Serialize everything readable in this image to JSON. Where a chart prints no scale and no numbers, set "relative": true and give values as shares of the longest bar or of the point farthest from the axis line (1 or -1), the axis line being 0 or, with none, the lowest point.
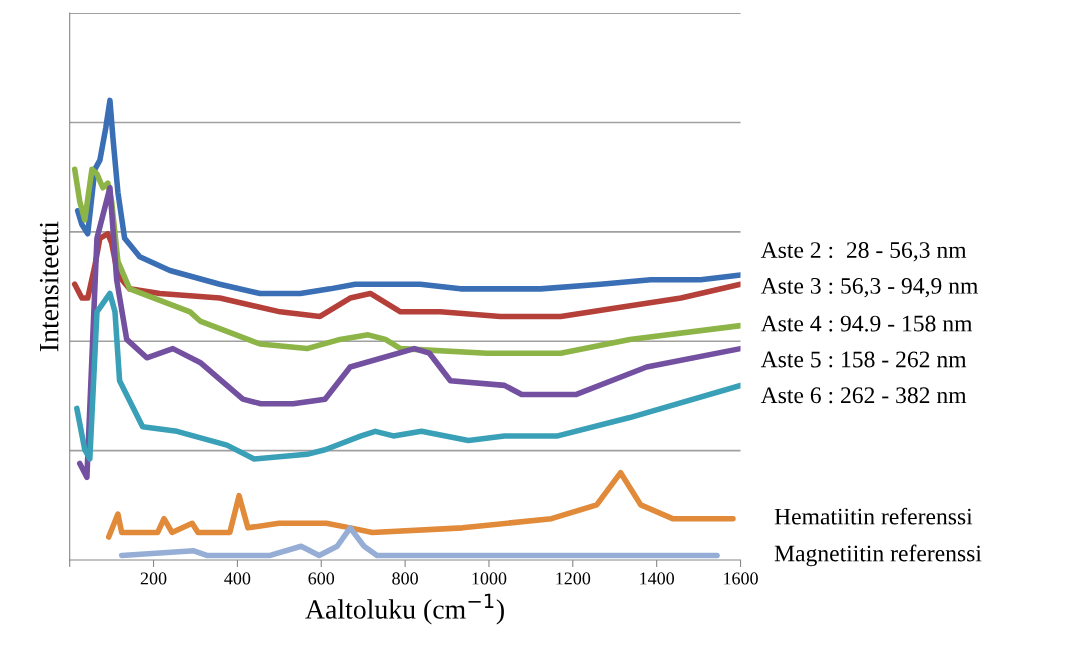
{
  "chart_data": {
    "type": "line",
    "relative": true,
    "xlabel": "Aaltoluku (cm$^{−1}$)",
    "ylabel": "Intensiteetti",
    "xlim": [
      0,
      1600
    ],
    "xticks": [
      {
        "value": 0,
        "label": null
      },
      200,
      400,
      600,
      800,
      1000,
      1200,
      1400,
      1600
    ],
    "grid": "y",
    "legend": false,
    "marker": "none",
    "line_style": "solid",
    "series": [
      {
        "name": "Aste 2 :  28 - 56,3 nm",
        "color": "#3a6fb5",
        "x": [
          19,
          29,
          43,
          60,
          72,
          86,
          96,
          103,
          115,
          131,
          167,
          239,
          358,
          454,
          550,
          621,
          681,
          741,
          836,
          932,
          1027,
          1123,
          1266,
          1386,
          1505,
          1600
        ],
        "values": [
          0.76,
          0.73,
          0.71,
          0.85,
          0.87,
          0.94,
          1,
          0.92,
          0.8,
          0.7,
          0.66,
          0.63,
          0.6,
          0.58,
          0.58,
          0.59,
          0.6,
          0.6,
          0.6,
          0.59,
          0.59,
          0.59,
          0.6,
          0.61,
          0.61,
          0.62
        ]
      },
      {
        "name": "Aste 3 : 56,3 - 94,9 nm",
        "color": "#b5403a",
        "x": [
          12,
          29,
          43,
          60,
          72,
          91,
          100,
          115,
          143,
          215,
          358,
          502,
          597,
          669,
          717,
          753,
          789,
          884,
          1027,
          1171,
          1314,
          1458,
          1600
        ],
        "values": [
          0.6,
          0.57,
          0.57,
          0.64,
          0.7,
          0.71,
          0.69,
          0.62,
          0.59,
          0.58,
          0.57,
          0.54,
          0.53,
          0.57,
          0.58,
          0.56,
          0.54,
          0.54,
          0.53,
          0.53,
          0.55,
          0.57,
          0.6
        ]
      },
      {
        "name": "Aste 4 : 94.9 - 158 nm",
        "color": "#8db446",
        "x": [
          12,
          24,
          36,
          53,
          65,
          79,
          91,
          100,
          115,
          143,
          287,
          311,
          454,
          566,
          645,
          712,
          753,
          789,
          995,
          1171,
          1336,
          1600
        ],
        "values": [
          0.85,
          0.78,
          0.74,
          0.85,
          0.84,
          0.81,
          0.82,
          0.78,
          0.65,
          0.59,
          0.54,
          0.52,
          0.47,
          0.46,
          0.48,
          0.49,
          0.48,
          0.46,
          0.45,
          0.45,
          0.48,
          0.51
        ]
      },
      {
        "name": "Aste 5 : 158 - 262 nm",
        "color": "#7350a0",
        "x": [
          24,
          41,
          65,
          96,
          112,
          136,
          184,
          246,
          311,
          413,
          456,
          533,
          609,
          669,
          822,
          858,
          908,
          1037,
          1078,
          1207,
          1376,
          1600
        ],
        "values": [
          0.21,
          0.18,
          0.7,
          0.81,
          0.61,
          0.48,
          0.44,
          0.46,
          0.43,
          0.35,
          0.34,
          0.34,
          0.35,
          0.42,
          0.46,
          0.45,
          0.39,
          0.38,
          0.36,
          0.36,
          0.42,
          0.46
        ]
      },
      {
        "name": "Aste 6 : 262 - 382 nm",
        "color": "#3aa0b8",
        "x": [
          17,
          36,
          48,
          65,
          96,
          108,
          119,
          174,
          256,
          375,
          440,
          566,
          609,
          695,
          729,
          772,
          839,
          951,
          1037,
          1164,
          1336,
          1600
        ],
        "values": [
          0.33,
          0.24,
          0.22,
          0.54,
          0.58,
          0.54,
          0.39,
          0.29,
          0.28,
          0.25,
          0.22,
          0.23,
          0.24,
          0.27,
          0.28,
          0.27,
          0.28,
          0.26,
          0.27,
          0.27,
          0.31,
          0.38
        ]
      },
      {
        "name": "Hematiitin referenssi",
        "color": "#e08a3a",
        "x": [
          93,
          115,
          124,
          210,
          225,
          244,
          292,
          306,
          382,
          404,
          425,
          499,
          564,
          612,
          669,
          722,
          937,
          1149,
          1257,
          1314,
          1362,
          1438,
          1582
        ],
        "values": [
          0.05,
          0.1,
          0.06,
          0.06,
          0.09,
          0.06,
          0.08,
          0.06,
          0.06,
          0.14,
          0.07,
          0.08,
          0.08,
          0.08,
          0.07,
          0.06,
          0.07,
          0.09,
          0.12,
          0.19,
          0.12,
          0.09,
          0.09
        ]
      },
      {
        "name": "Magnetiitin referenssi",
        "color": "#96aed6",
        "x": [
          124,
          296,
          327,
          478,
          552,
          595,
          638,
          669,
          702,
          733,
          1042,
          1544
        ],
        "values": [
          0.01,
          0.02,
          0.01,
          0.01,
          0.03,
          0.01,
          0.03,
          0.07,
          0.03,
          0.01,
          0.01,
          0.01
        ]
      }
    ]
  }
}
